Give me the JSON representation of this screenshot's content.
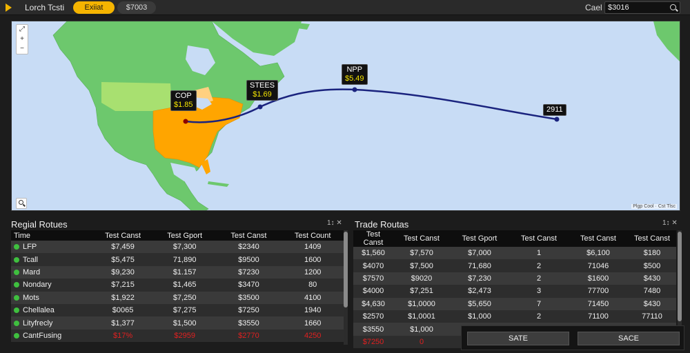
{
  "topbar": {
    "app_title": "Lorch Tcsti",
    "tab_active": "Exiiat",
    "tab_value": "$7003",
    "search_label": "Cael",
    "search_value": "$3016"
  },
  "map": {
    "zoom_in": "+",
    "zoom_out": "−",
    "attribution": "Plgp Cool · Cst Tlsc",
    "markers": [
      {
        "name": "COP",
        "price": "$1.85"
      },
      {
        "name": "STEES",
        "price": "$1.69"
      },
      {
        "name": "NPP",
        "price": "$5.49"
      },
      {
        "name": "2911",
        "price": ""
      }
    ],
    "colors": {
      "water": "#c8dcf5",
      "land": "#6dc86d",
      "highlight": "#ffa500",
      "route": "#1a237e"
    }
  },
  "regional": {
    "title": "Regial Rotues",
    "controls": "1↕ ✕",
    "columns": [
      "Time",
      "Test Canst",
      "Test Gport",
      "Test Canst",
      "Test Count"
    ],
    "rows": [
      {
        "name": "LFP",
        "cells": [
          "$7,459",
          "$7,300",
          "$2340",
          "1409"
        ],
        "red": false
      },
      {
        "name": "Tcall",
        "cells": [
          "$5,475",
          "71,890",
          "$9500",
          "1600"
        ],
        "red": false
      },
      {
        "name": "Mard",
        "cells": [
          "$9,230",
          "$1.157",
          "$7230",
          "1200"
        ],
        "red": false
      },
      {
        "name": "Nondary",
        "cells": [
          "$7,215",
          "$1,465",
          "$3470",
          "80"
        ],
        "red": false
      },
      {
        "name": "Mots",
        "cells": [
          "$1,922",
          "$7,250",
          "$3500",
          "4100"
        ],
        "red": false
      },
      {
        "name": "Chellalea",
        "cells": [
          "$0065",
          "$7,275",
          "$7250",
          "1940"
        ],
        "red": false
      },
      {
        "name": "Lityfrecly",
        "cells": [
          "$1,377",
          "$1,500",
          "$3550",
          "1660"
        ],
        "red": false
      },
      {
        "name": "CantFusing",
        "cells": [
          "$17%",
          "$2959",
          "$2770",
          "4250"
        ],
        "red": true
      }
    ]
  },
  "trade": {
    "title": "Trade Routas",
    "controls": "1↕ ✕",
    "columns": [
      "Test Canst",
      "Test Canst",
      "Test Gport",
      "Test Canst",
      "Test Canst",
      "Test Canst"
    ],
    "rows": [
      {
        "cells": [
          "$1,560",
          "$7,570",
          "$7,000",
          "1",
          "$6,100",
          "$180"
        ],
        "red": false
      },
      {
        "cells": [
          "$4070",
          "$7,500",
          "71,680",
          "2",
          "71046",
          "$500"
        ],
        "red": false
      },
      {
        "cells": [
          "$7570",
          "$9020",
          "$7,230",
          "2",
          "$1600",
          "$430"
        ],
        "red": false
      },
      {
        "cells": [
          "$4000",
          "$7,251",
          "$2,473",
          "3",
          "77700",
          "7480"
        ],
        "red": false
      },
      {
        "cells": [
          "$4,630",
          "$1,0000",
          "$5,650",
          "7",
          "71450",
          "$430"
        ],
        "red": false
      },
      {
        "cells": [
          "$2570",
          "$1,0001",
          "$1,000",
          "2",
          "71100",
          "77110"
        ],
        "red": false
      },
      {
        "cells": [
          "$3550",
          "$1,000",
          "$8,500",
          "6",
          "71450",
          "$730"
        ],
        "red": false
      },
      {
        "cells": [
          "$7250",
          "0",
          "",
          "",
          "",
          ""
        ],
        "red": true
      }
    ]
  },
  "actions": {
    "save_label": "SATE",
    "save2_label": "SACE"
  }
}
